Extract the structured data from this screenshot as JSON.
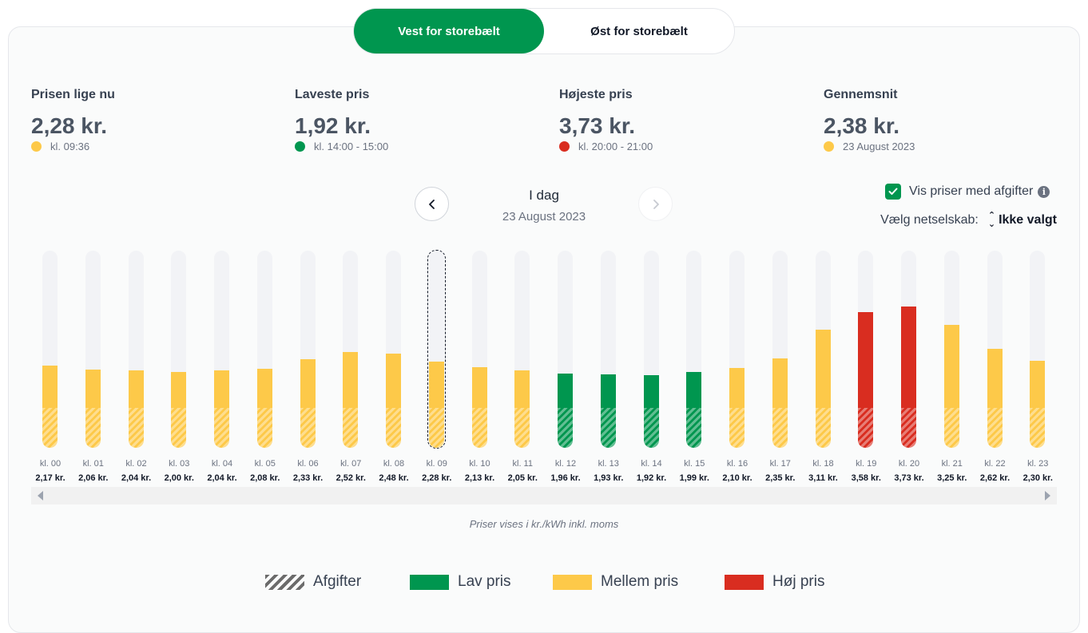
{
  "region_toggle": {
    "options": [
      "Vest for storebælt",
      "Øst for storebælt"
    ],
    "selected": "Vest for storebælt"
  },
  "stats": [
    {
      "title": "Prisen lige nu",
      "value": "2,28 kr.",
      "sub": "kl. 09:36",
      "color": "#fdc949"
    },
    {
      "title": "Laveste pris",
      "value": "1,92 kr.",
      "sub": "kl. 14:00 - 15:00",
      "color": "#00964f"
    },
    {
      "title": "Højeste pris",
      "value": "3,73 kr.",
      "sub": "kl. 20:00 - 21:00",
      "color": "#d92d20"
    },
    {
      "title": "Gennemsnit",
      "value": "2,38 kr.",
      "sub": "23 August 2023",
      "color": "#fdc949"
    }
  ],
  "day_nav": {
    "title": "I dag",
    "date": "23 August 2023",
    "prev_icon": "chevron-left-icon",
    "next_icon": "chevron-right-icon"
  },
  "options": {
    "show_fees_label": "Vis priser med afgifter",
    "show_fees_checked": true,
    "netsel_label": "Vælg netselskab:",
    "netsel_value": "Ikke valgt"
  },
  "colors": {
    "lav": "#00964f",
    "mellem": "#fdc949",
    "hoej": "#d92d20",
    "track": "#f2f3f6"
  },
  "chart_data": {
    "type": "bar",
    "categories": [
      "kl. 00",
      "kl. 01",
      "kl. 02",
      "kl. 03",
      "kl. 04",
      "kl. 05",
      "kl. 06",
      "kl. 07",
      "kl. 08",
      "kl. 09",
      "kl. 10",
      "kl. 11",
      "kl. 12",
      "kl. 13",
      "kl. 14",
      "kl. 15",
      "kl. 16",
      "kl. 17",
      "kl. 18",
      "kl. 19",
      "kl. 20",
      "kl. 21",
      "kl. 22",
      "kl. 23"
    ],
    "values": [
      2.17,
      2.06,
      2.04,
      2.0,
      2.04,
      2.08,
      2.33,
      2.52,
      2.48,
      2.28,
      2.13,
      2.05,
      1.96,
      1.93,
      1.92,
      1.99,
      2.1,
      2.35,
      3.11,
      3.58,
      3.73,
      3.25,
      2.62,
      2.3
    ],
    "value_labels": [
      "2,17 kr.",
      "2,06 kr.",
      "2,04 kr.",
      "2,00 kr.",
      "2,04 kr.",
      "2,08 kr.",
      "2,33 kr.",
      "2,52 kr.",
      "2,48 kr.",
      "2,28 kr.",
      "2,13 kr.",
      "2,05 kr.",
      "1,96 kr.",
      "1,93 kr.",
      "1,92 kr.",
      "1,99 kr.",
      "2,10 kr.",
      "2,35 kr.",
      "3,11 kr.",
      "3,58 kr.",
      "3,73 kr.",
      "3,25 kr.",
      "2,62 kr.",
      "2,30 kr."
    ],
    "levels": [
      "mellem",
      "mellem",
      "mellem",
      "mellem",
      "mellem",
      "mellem",
      "mellem",
      "mellem",
      "mellem",
      "mellem",
      "mellem",
      "mellem",
      "lav",
      "lav",
      "lav",
      "lav",
      "mellem",
      "mellem",
      "mellem",
      "hoej",
      "hoej",
      "mellem",
      "mellem",
      "mellem"
    ],
    "selected_index": 9,
    "fee_portion": 1.06,
    "ylim": [
      0,
      5.2
    ]
  },
  "note": "Priser vises i kr./kWh inkl. moms",
  "legend": [
    {
      "key": "afgifter",
      "label": "Afgifter"
    },
    {
      "key": "lav",
      "label": "Lav pris"
    },
    {
      "key": "mellem",
      "label": "Mellem pris"
    },
    {
      "key": "hoej",
      "label": "Høj pris"
    }
  ]
}
